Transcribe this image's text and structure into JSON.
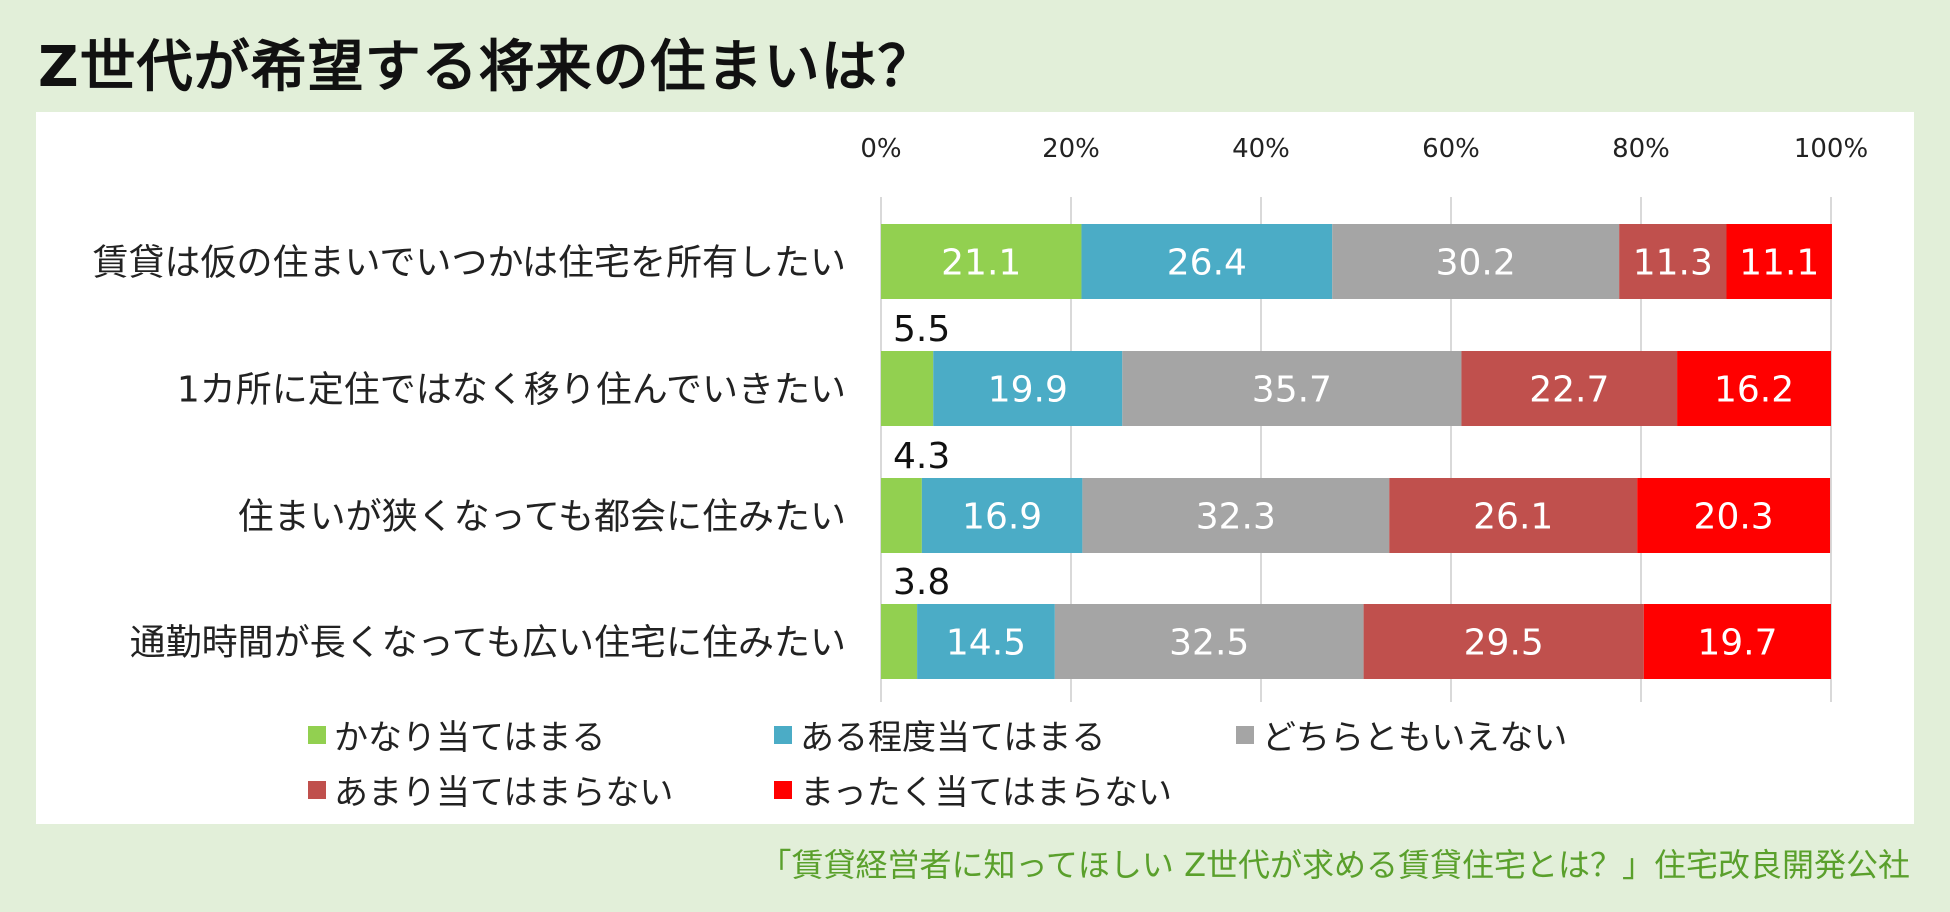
{
  "title": "Z世代が希望する将来の住まいは？",
  "source": "「賃貸経営者に知ってほしい Z世代が求める賃貸住宅とは？」住宅改良開発公社",
  "colors": [
    "#92d050",
    "#4bacc6",
    "#a5a5a5",
    "#c0504d",
    "#ff0000"
  ],
  "chart_data": {
    "type": "bar",
    "orientation": "horizontal",
    "stacked": true,
    "percent": true,
    "xlim": [
      0,
      100
    ],
    "ticks": [
      "0%",
      "20%",
      "40%",
      "60%",
      "80%",
      "100%"
    ],
    "grid": true,
    "legend_position": "bottom",
    "categories": [
      "賃貸は仮の住まいでいつかは住宅を所有したい",
      "1カ所に定住ではなく移り住んでいきたい",
      "住まいが狭くなっても都会に住みたい",
      "通勤時間が長くなっても広い住宅に住みたい"
    ],
    "series": [
      {
        "name": "かなり当てはまる",
        "values": [
          21.1,
          5.5,
          4.3,
          3.8
        ]
      },
      {
        "name": "ある程度当てはまる",
        "values": [
          26.4,
          19.9,
          16.9,
          14.5
        ]
      },
      {
        "name": "どちらともいえない",
        "values": [
          30.2,
          35.7,
          32.3,
          32.5
        ]
      },
      {
        "name": "あまり当てはまらない",
        "values": [
          11.3,
          22.7,
          26.1,
          29.5
        ]
      },
      {
        "name": "まったく当てはまらない",
        "values": [
          11.1,
          16.2,
          20.3,
          19.7
        ]
      }
    ]
  }
}
